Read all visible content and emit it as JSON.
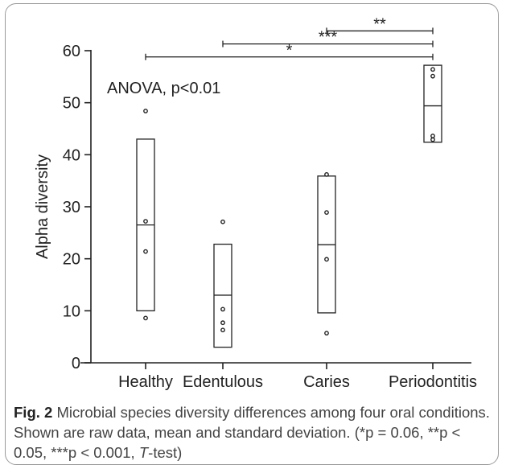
{
  "chart_data": {
    "type": "box",
    "ylabel": "Alpha diversity",
    "ylim": [
      0,
      60
    ],
    "yticks": [
      0,
      10,
      20,
      30,
      40,
      50,
      60
    ],
    "categories": [
      "Healthy",
      "Edentulous",
      "Caries",
      "Periodontitis"
    ],
    "groups": [
      {
        "name": "Healthy",
        "mean": 26.5,
        "low": 10,
        "high": 43,
        "points": [
          8.6,
          21.4,
          27.2,
          48.4
        ]
      },
      {
        "name": "Edentulous",
        "mean": 13,
        "low": 3,
        "high": 22.8,
        "points": [
          6.3,
          7.7,
          10.3,
          27.1
        ]
      },
      {
        "name": "Caries",
        "mean": 22.7,
        "low": 9.6,
        "high": 35.9,
        "points": [
          5.7,
          19.9,
          28.9,
          36.2
        ]
      },
      {
        "name": "Periodontitis",
        "mean": 49.4,
        "low": 42.4,
        "high": 57.2,
        "points": [
          42.9,
          43.6,
          55.1,
          56.4
        ]
      }
    ],
    "annotation": "ANOVA, p<0.01",
    "significance": [
      {
        "from": "Healthy",
        "to": "Periodontitis",
        "label": "*",
        "y": 58.8
      },
      {
        "from": "Edentulous",
        "to": "Periodontitis",
        "label": "***",
        "y": 61.3
      },
      {
        "from": "Caries",
        "to": "Periodontitis",
        "label": "**",
        "y": 63.8
      }
    ]
  },
  "caption": {
    "label": "Fig. 2",
    "text": " Microbial species diversity differences among four oral conditions. Shown are raw data, mean and standard deviation. (*p = 0.06, **p < 0.05, ***p < 0.001, ",
    "test_name": "T",
    "test_suffix": "-test)"
  }
}
